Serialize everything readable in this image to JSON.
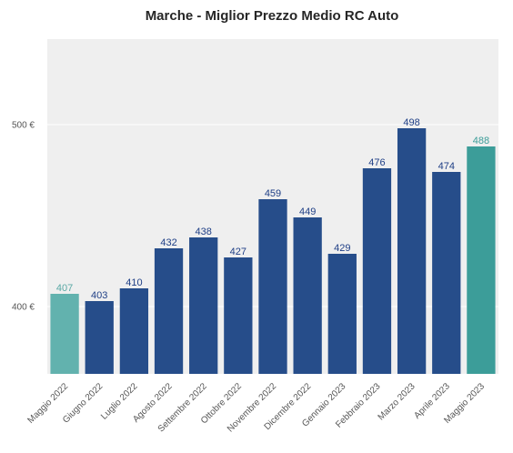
{
  "chart_data": {
    "type": "bar",
    "title": "Marche - Miglior Prezzo Medio RC Auto",
    "xlabel": "",
    "ylabel": "",
    "categories": [
      "Maggio 2022",
      "Giugno 2022",
      "Luglio 2022",
      "Agosto 2022",
      "Settembre 2022",
      "Ottobre 2022",
      "Novembre 2022",
      "Dicembre 2022",
      "Gennaio 2023",
      "Febbraio 2023",
      "Marzo 2023",
      "Aprile 2023",
      "Maggio 2023"
    ],
    "values": [
      407,
      403,
      410,
      432,
      438,
      427,
      459,
      449,
      429,
      476,
      498,
      474,
      488
    ],
    "ylim": [
      363,
      547
    ],
    "yticks": [
      400,
      500
    ],
    "ytick_labels": [
      "400 €",
      "500 €"
    ],
    "grid": true,
    "bar_colors": [
      "#62b2ae",
      "#264d8a",
      "#264d8a",
      "#264d8a",
      "#264d8a",
      "#264d8a",
      "#264d8a",
      "#264d8a",
      "#264d8a",
      "#264d8a",
      "#264d8a",
      "#264d8a",
      "#3c9d99"
    ],
    "label_colors": [
      "#5aa9a5",
      "#1f3f86",
      "#1f3f86",
      "#1f3f86",
      "#1f3f86",
      "#1f3f86",
      "#1f3f86",
      "#1f3f86",
      "#1f3f86",
      "#1f3f86",
      "#1f3f86",
      "#1f3f86",
      "#3c9d99"
    ],
    "background_color": "#efefef",
    "grid_color": "#ffffff"
  }
}
